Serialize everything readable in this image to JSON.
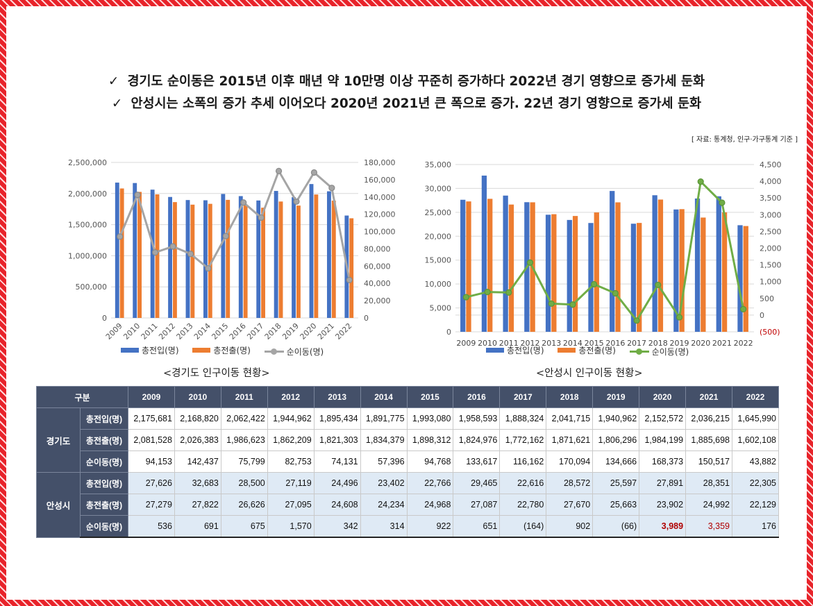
{
  "headlines": [
    {
      "check": "✓",
      "text": "경기도 순이동은 2015년 이후 매년 약 10만명 이상 꾸준히 증가하다 2022년 경기 영향으로 증가세 둔화"
    },
    {
      "check": "✓",
      "text": "안성시는 소폭의 증가 추세 이어오다 2020년 2021년 큰 폭으로 증가. 22년 경기 영향으로 증가세 둔화"
    }
  ],
  "source": "[ 자료: 통계청, 인구·가구통계 기준 ]",
  "colors": {
    "inflow": "#4472c4",
    "outflow": "#ed7d31",
    "net_gyeonggi": "#a5a5a5",
    "net_anseong": "#70ad47",
    "header_bg": "#445069",
    "negative": "#b00000"
  },
  "chart_data": [
    {
      "type": "bar",
      "caption": "<경기도 인구이동 현황>",
      "categories": [
        "2009",
        "2010",
        "2011",
        "2012",
        "2013",
        "2014",
        "2015",
        "2016",
        "2017",
        "2018",
        "2019",
        "2020",
        "2021",
        "2022"
      ],
      "series": [
        {
          "name": "총전입(명)",
          "type": "bar",
          "axis": "left",
          "values": [
            2175681,
            2168820,
            2062422,
            1944962,
            1895434,
            1891775,
            1993080,
            1958593,
            1888324,
            2041715,
            1940962,
            2152572,
            2036215,
            1645990
          ]
        },
        {
          "name": "총전출(명)",
          "type": "bar",
          "axis": "left",
          "values": [
            2081528,
            2026383,
            1986623,
            1862209,
            1821303,
            1834379,
            1898312,
            1824976,
            1772162,
            1871621,
            1806296,
            1984199,
            1885698,
            1602108
          ]
        },
        {
          "name": "순이동(명)",
          "type": "line",
          "axis": "right",
          "values": [
            94153,
            142437,
            75799,
            82753,
            74131,
            57396,
            94768,
            133617,
            116162,
            170094,
            134666,
            168373,
            150517,
            43882
          ]
        }
      ],
      "ylim_left": [
        0,
        2500000
      ],
      "yticks_left": [
        "0",
        "500,000",
        "1,000,000",
        "1,500,000",
        "2,000,000",
        "2,500,000"
      ],
      "ylim_right": [
        0,
        180000
      ],
      "yticks_right": [
        "0",
        "20,000",
        "40,000",
        "60,000",
        "80,000",
        "100,000",
        "120,000",
        "140,000",
        "160,000",
        "180,000"
      ],
      "grid": true,
      "legend": "bottom"
    },
    {
      "type": "bar",
      "caption": "<안성시 인구이동 현황>",
      "categories": [
        "2009",
        "2010",
        "2011",
        "2012",
        "2013",
        "2014",
        "2015",
        "2016",
        "2017",
        "2018",
        "2019",
        "2020",
        "2021",
        "2022"
      ],
      "series": [
        {
          "name": "총전입(명)",
          "type": "bar",
          "axis": "left",
          "values": [
            27626,
            32683,
            28500,
            27119,
            24496,
            23402,
            22766,
            29465,
            22616,
            28572,
            25597,
            27891,
            28351,
            22305
          ]
        },
        {
          "name": "총전출(명)",
          "type": "bar",
          "axis": "left",
          "values": [
            27279,
            27822,
            26626,
            27095,
            24608,
            24234,
            24968,
            27087,
            22780,
            27670,
            25663,
            23902,
            24992,
            22129
          ]
        },
        {
          "name": "순이동(명)",
          "type": "line",
          "axis": "right",
          "values": [
            536,
            691,
            675,
            1570,
            342,
            314,
            922,
            651,
            -164,
            902,
            -66,
            3989,
            3359,
            176
          ]
        }
      ],
      "ylim_left": [
        0,
        35000
      ],
      "yticks_left": [
        "0",
        "5,000",
        "10,000",
        "15,000",
        "20,000",
        "25,000",
        "30,000",
        "35,000"
      ],
      "ylim_right": [
        -500,
        4500
      ],
      "yticks_right": [
        "(500)",
        "0",
        "500",
        "1,000",
        "1,500",
        "2,000",
        "2,500",
        "3,000",
        "3,500",
        "4,000",
        "4,500"
      ],
      "grid": true,
      "legend": "bottom"
    }
  ],
  "table": {
    "header": [
      "구분",
      "2009",
      "2010",
      "2011",
      "2012",
      "2013",
      "2014",
      "2015",
      "2016",
      "2017",
      "2018",
      "2019",
      "2020",
      "2021",
      "2022"
    ],
    "groups": [
      {
        "name": "경기도",
        "rows": [
          {
            "label": "총전입(명)",
            "cells": [
              "2,175,681",
              "2,168,820",
              "2,062,422",
              "1,944,962",
              "1,895,434",
              "1,891,775",
              "1,993,080",
              "1,958,593",
              "1,888,324",
              "2,041,715",
              "1,940,962",
              "2,152,572",
              "2,036,215",
              "1,645,990"
            ]
          },
          {
            "label": "총전출(명)",
            "cells": [
              "2,081,528",
              "2,026,383",
              "1,986,623",
              "1,862,209",
              "1,821,303",
              "1,834,379",
              "1,898,312",
              "1,824,976",
              "1,772,162",
              "1,871,621",
              "1,806,296",
              "1,984,199",
              "1,885,698",
              "1,602,108"
            ]
          },
          {
            "label": "순이동(명)",
            "cells": [
              "94,153",
              "142,437",
              "75,799",
              "82,753",
              "74,131",
              "57,396",
              "94,768",
              "133,617",
              "116,162",
              "170,094",
              "134,666",
              "168,373",
              "150,517",
              "43,882"
            ]
          }
        ]
      },
      {
        "name": "안성시",
        "rows": [
          {
            "label": "총전입(명)",
            "cells": [
              "27,626",
              "32,683",
              "28,500",
              "27,119",
              "24,496",
              "23,402",
              "22,766",
              "29,465",
              "22,616",
              "28,572",
              "25,597",
              "27,891",
              "28,351",
              "22,305"
            ]
          },
          {
            "label": "총전출(명)",
            "cells": [
              "27,279",
              "27,822",
              "26,626",
              "27,095",
              "24,608",
              "24,234",
              "24,968",
              "27,087",
              "22,780",
              "27,670",
              "25,663",
              "23,902",
              "24,992",
              "22,129"
            ]
          },
          {
            "label": "순이동(명)",
            "cells": [
              "536",
              "691",
              "675",
              "1,570",
              "342",
              "314",
              "922",
              "651",
              "(164)",
              "902",
              "(66)",
              "3,989",
              "3,359",
              "176"
            ]
          }
        ]
      }
    ]
  }
}
